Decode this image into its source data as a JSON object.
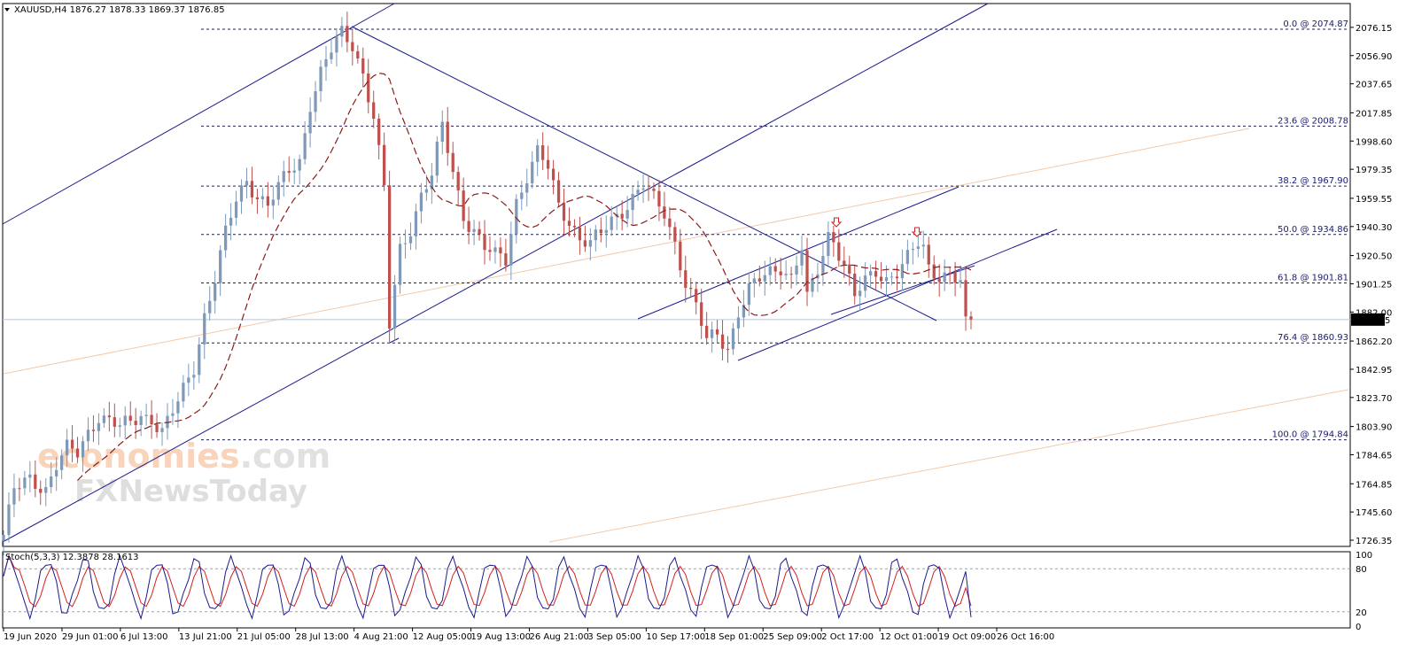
{
  "header": {
    "symbol_line": "XAUUSD,H4  1876.27 1878.33 1869.37 1876.85"
  },
  "stoch_header": "Stoch(5,3,3) 12.3878 28.1613",
  "watermark": {
    "line1_part1": "economies",
    "line1_part2": ".com",
    "line2": "FXNewsToday"
  },
  "colors": {
    "bull_candle": "#7e9ab8",
    "bear_candle": "#c0504d",
    "trendline": "#1a1a8c",
    "fib_line": "#1a1a6e",
    "ma_line": "#8b1a1a",
    "orange_line": "#f3c9a8",
    "stoch_main": "#1a1a8c",
    "stoch_signal": "#d22020",
    "arrow": "#d22020"
  },
  "chart_data": {
    "type": "candlestick",
    "symbol": "XAUUSD",
    "timeframe": "H4",
    "last_price": 1876.85,
    "last_price_label": "1876.85",
    "ylim": [
      1726.35,
      2083.0
    ],
    "price_ticks": [
      "2076.15",
      "2056.90",
      "2037.65",
      "2017.85",
      "1998.60",
      "1979.35",
      "1959.55",
      "1940.30",
      "1920.50",
      "1901.25",
      "1882.00",
      "1862.20",
      "1842.95",
      "1823.70",
      "1803.90",
      "1784.65",
      "1764.85",
      "1745.60",
      "1726.35"
    ],
    "date_labels": [
      "19 Jun 2020",
      "29 Jun 01:00",
      "6 Jul 13:00",
      "13 Jul 21:00",
      "21 Jul 05:00",
      "28 Jul 13:00",
      "4 Aug 21:00",
      "12 Aug 05:00",
      "19 Aug 13:00",
      "26 Aug 21:00",
      "3 Sep 05:00",
      "10 Sep 17:00",
      "18 Sep 01:00",
      "25 Sep 09:00",
      "2 Oct 17:00",
      "12 Oct 01:00",
      "19 Oct 09:00",
      "26 Oct 16:00"
    ],
    "fibonacci": [
      {
        "label": "0.0 @ 2074.87",
        "value": 2074.87
      },
      {
        "label": "23.6 @ 2008.78",
        "value": 2008.78
      },
      {
        "label": "38.2 @ 1967.90",
        "value": 1967.9
      },
      {
        "label": "50.0 @ 1934.86",
        "value": 1934.86
      },
      {
        "label": "61.8 @ 1901.81",
        "value": 1901.81
      },
      {
        "label": "76.4 @ 1860.93",
        "value": 1860.93
      },
      {
        "label": "100.0 @ 1794.84",
        "value": 1794.84
      }
    ],
    "price_anchors": [
      [
        0,
        1730
      ],
      [
        2,
        1760
      ],
      [
        5,
        1768
      ],
      [
        8,
        1762
      ],
      [
        10,
        1778
      ],
      [
        12,
        1788
      ],
      [
        14,
        1785
      ],
      [
        16,
        1800
      ],
      [
        18,
        1812
      ],
      [
        20,
        1808
      ],
      [
        22,
        1803
      ],
      [
        24,
        1806
      ],
      [
        26,
        1812
      ],
      [
        28,
        1810
      ],
      [
        30,
        1800
      ],
      [
        33,
        1820
      ],
      [
        36,
        1845
      ],
      [
        38,
        1880
      ],
      [
        40,
        1905
      ],
      [
        42,
        1935
      ],
      [
        44,
        1958
      ],
      [
        46,
        1972
      ],
      [
        48,
        1962
      ],
      [
        50,
        1955
      ],
      [
        52,
        1966
      ],
      [
        54,
        1978
      ],
      [
        56,
        1985
      ],
      [
        58,
        2025
      ],
      [
        60,
        2045
      ],
      [
        62,
        2060
      ],
      [
        64,
        2072
      ],
      [
        66,
        2065
      ],
      [
        68,
        2045
      ],
      [
        70,
        2015
      ],
      [
        72,
        1965
      ],
      [
        73,
        1872
      ],
      [
        75,
        1925
      ],
      [
        77,
        1940
      ],
      [
        79,
        1962
      ],
      [
        81,
        1975
      ],
      [
        83,
        2008
      ],
      [
        85,
        1978
      ],
      [
        87,
        1948
      ],
      [
        89,
        1938
      ],
      [
        91,
        1925
      ],
      [
        93,
        1920
      ],
      [
        95,
        1918
      ],
      [
        97,
        1958
      ],
      [
        99,
        1975
      ],
      [
        101,
        1990
      ],
      [
        103,
        1980
      ],
      [
        105,
        1955
      ],
      [
        107,
        1945
      ],
      [
        109,
        1932
      ],
      [
        111,
        1928
      ],
      [
        113,
        1935
      ],
      [
        115,
        1945
      ],
      [
        117,
        1952
      ],
      [
        119,
        1960
      ],
      [
        121,
        1968
      ],
      [
        123,
        1958
      ],
      [
        125,
        1950
      ],
      [
        127,
        1930
      ],
      [
        129,
        1902
      ],
      [
        131,
        1885
      ],
      [
        133,
        1862
      ],
      [
        135,
        1868
      ],
      [
        137,
        1858
      ],
      [
        139,
        1882
      ],
      [
        141,
        1896
      ],
      [
        143,
        1904
      ],
      [
        145,
        1910
      ],
      [
        147,
        1914
      ],
      [
        149,
        1905
      ],
      [
        151,
        1925
      ],
      [
        152,
        1890
      ],
      [
        154,
        1910
      ],
      [
        156,
        1935
      ],
      [
        157,
        1932
      ],
      [
        159,
        1915
      ],
      [
        161,
        1892
      ],
      [
        163,
        1902
      ],
      [
        165,
        1910
      ],
      [
        167,
        1905
      ],
      [
        169,
        1910
      ],
      [
        171,
        1918
      ],
      [
        173,
        1928
      ],
      [
        174,
        1925
      ],
      [
        175,
        1912
      ],
      [
        177,
        1908
      ],
      [
        179,
        1908
      ],
      [
        181,
        1902
      ],
      [
        182,
        1872
      ]
    ],
    "stochastic": {
      "levels": [
        100,
        80,
        20,
        0
      ],
      "main_last": 12.3878,
      "signal_last": 28.1613
    },
    "annotations": [
      {
        "type": "down-arrow",
        "near_price": 1943
      },
      {
        "type": "down-arrow",
        "near_price": 1943
      }
    ]
  }
}
